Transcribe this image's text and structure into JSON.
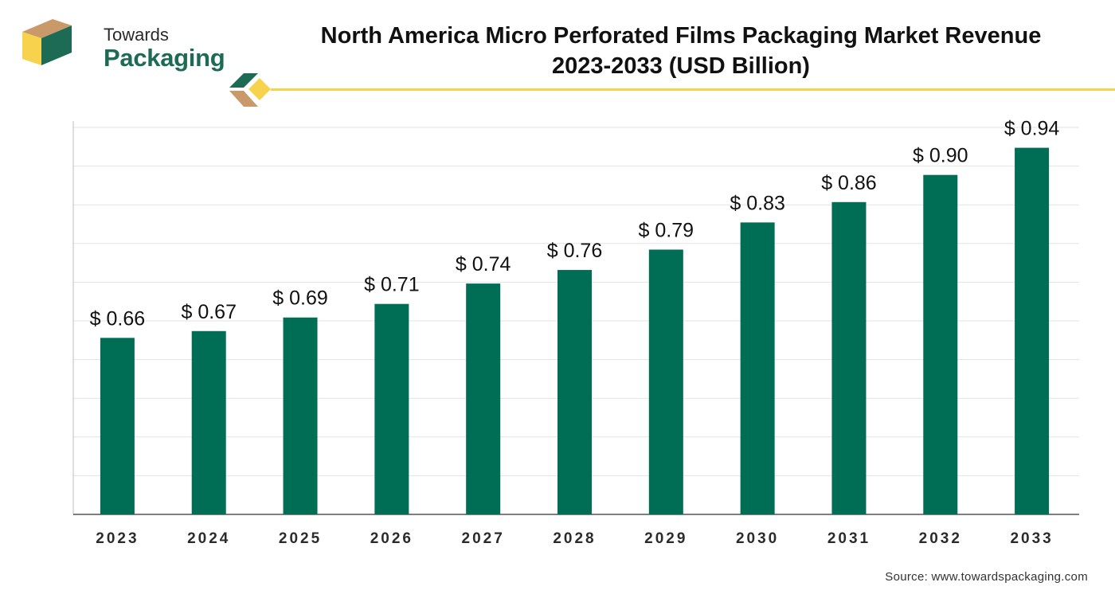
{
  "brand": {
    "line1": "Towards",
    "line2": "Packaging"
  },
  "source": "Source: www.towardspackaging.com",
  "colors": {
    "bar": "#006e55",
    "brand_green": "#1d6a55",
    "brand_yellow": "#f7d24d",
    "brand_tan": "#c9996a"
  },
  "chart_data": {
    "type": "bar",
    "title": "North America Micro Perforated Films Packaging Market Revenue 2023-2033 (USD Billion)",
    "title_lines": [
      "North America Micro Perforated Films Packaging Market Revenue",
      "2023-2033 (USD Billion)"
    ],
    "categories": [
      "2023",
      "2024",
      "2025",
      "2026",
      "2027",
      "2028",
      "2029",
      "2030",
      "2031",
      "2032",
      "2033"
    ],
    "values": [
      0.66,
      0.67,
      0.69,
      0.71,
      0.74,
      0.76,
      0.79,
      0.83,
      0.86,
      0.9,
      0.94
    ],
    "value_labels": [
      "$ 0.66",
      "$ 0.67",
      "$ 0.69",
      "$ 0.71",
      "$ 0.74",
      "$ 0.76",
      "$ 0.79",
      "$ 0.83",
      "$ 0.86",
      "$ 0.90",
      "$ 0.94"
    ],
    "xlabel": "",
    "ylabel": "",
    "ylim": [
      0.4,
      0.97
    ],
    "grid": true,
    "legend": "none"
  }
}
